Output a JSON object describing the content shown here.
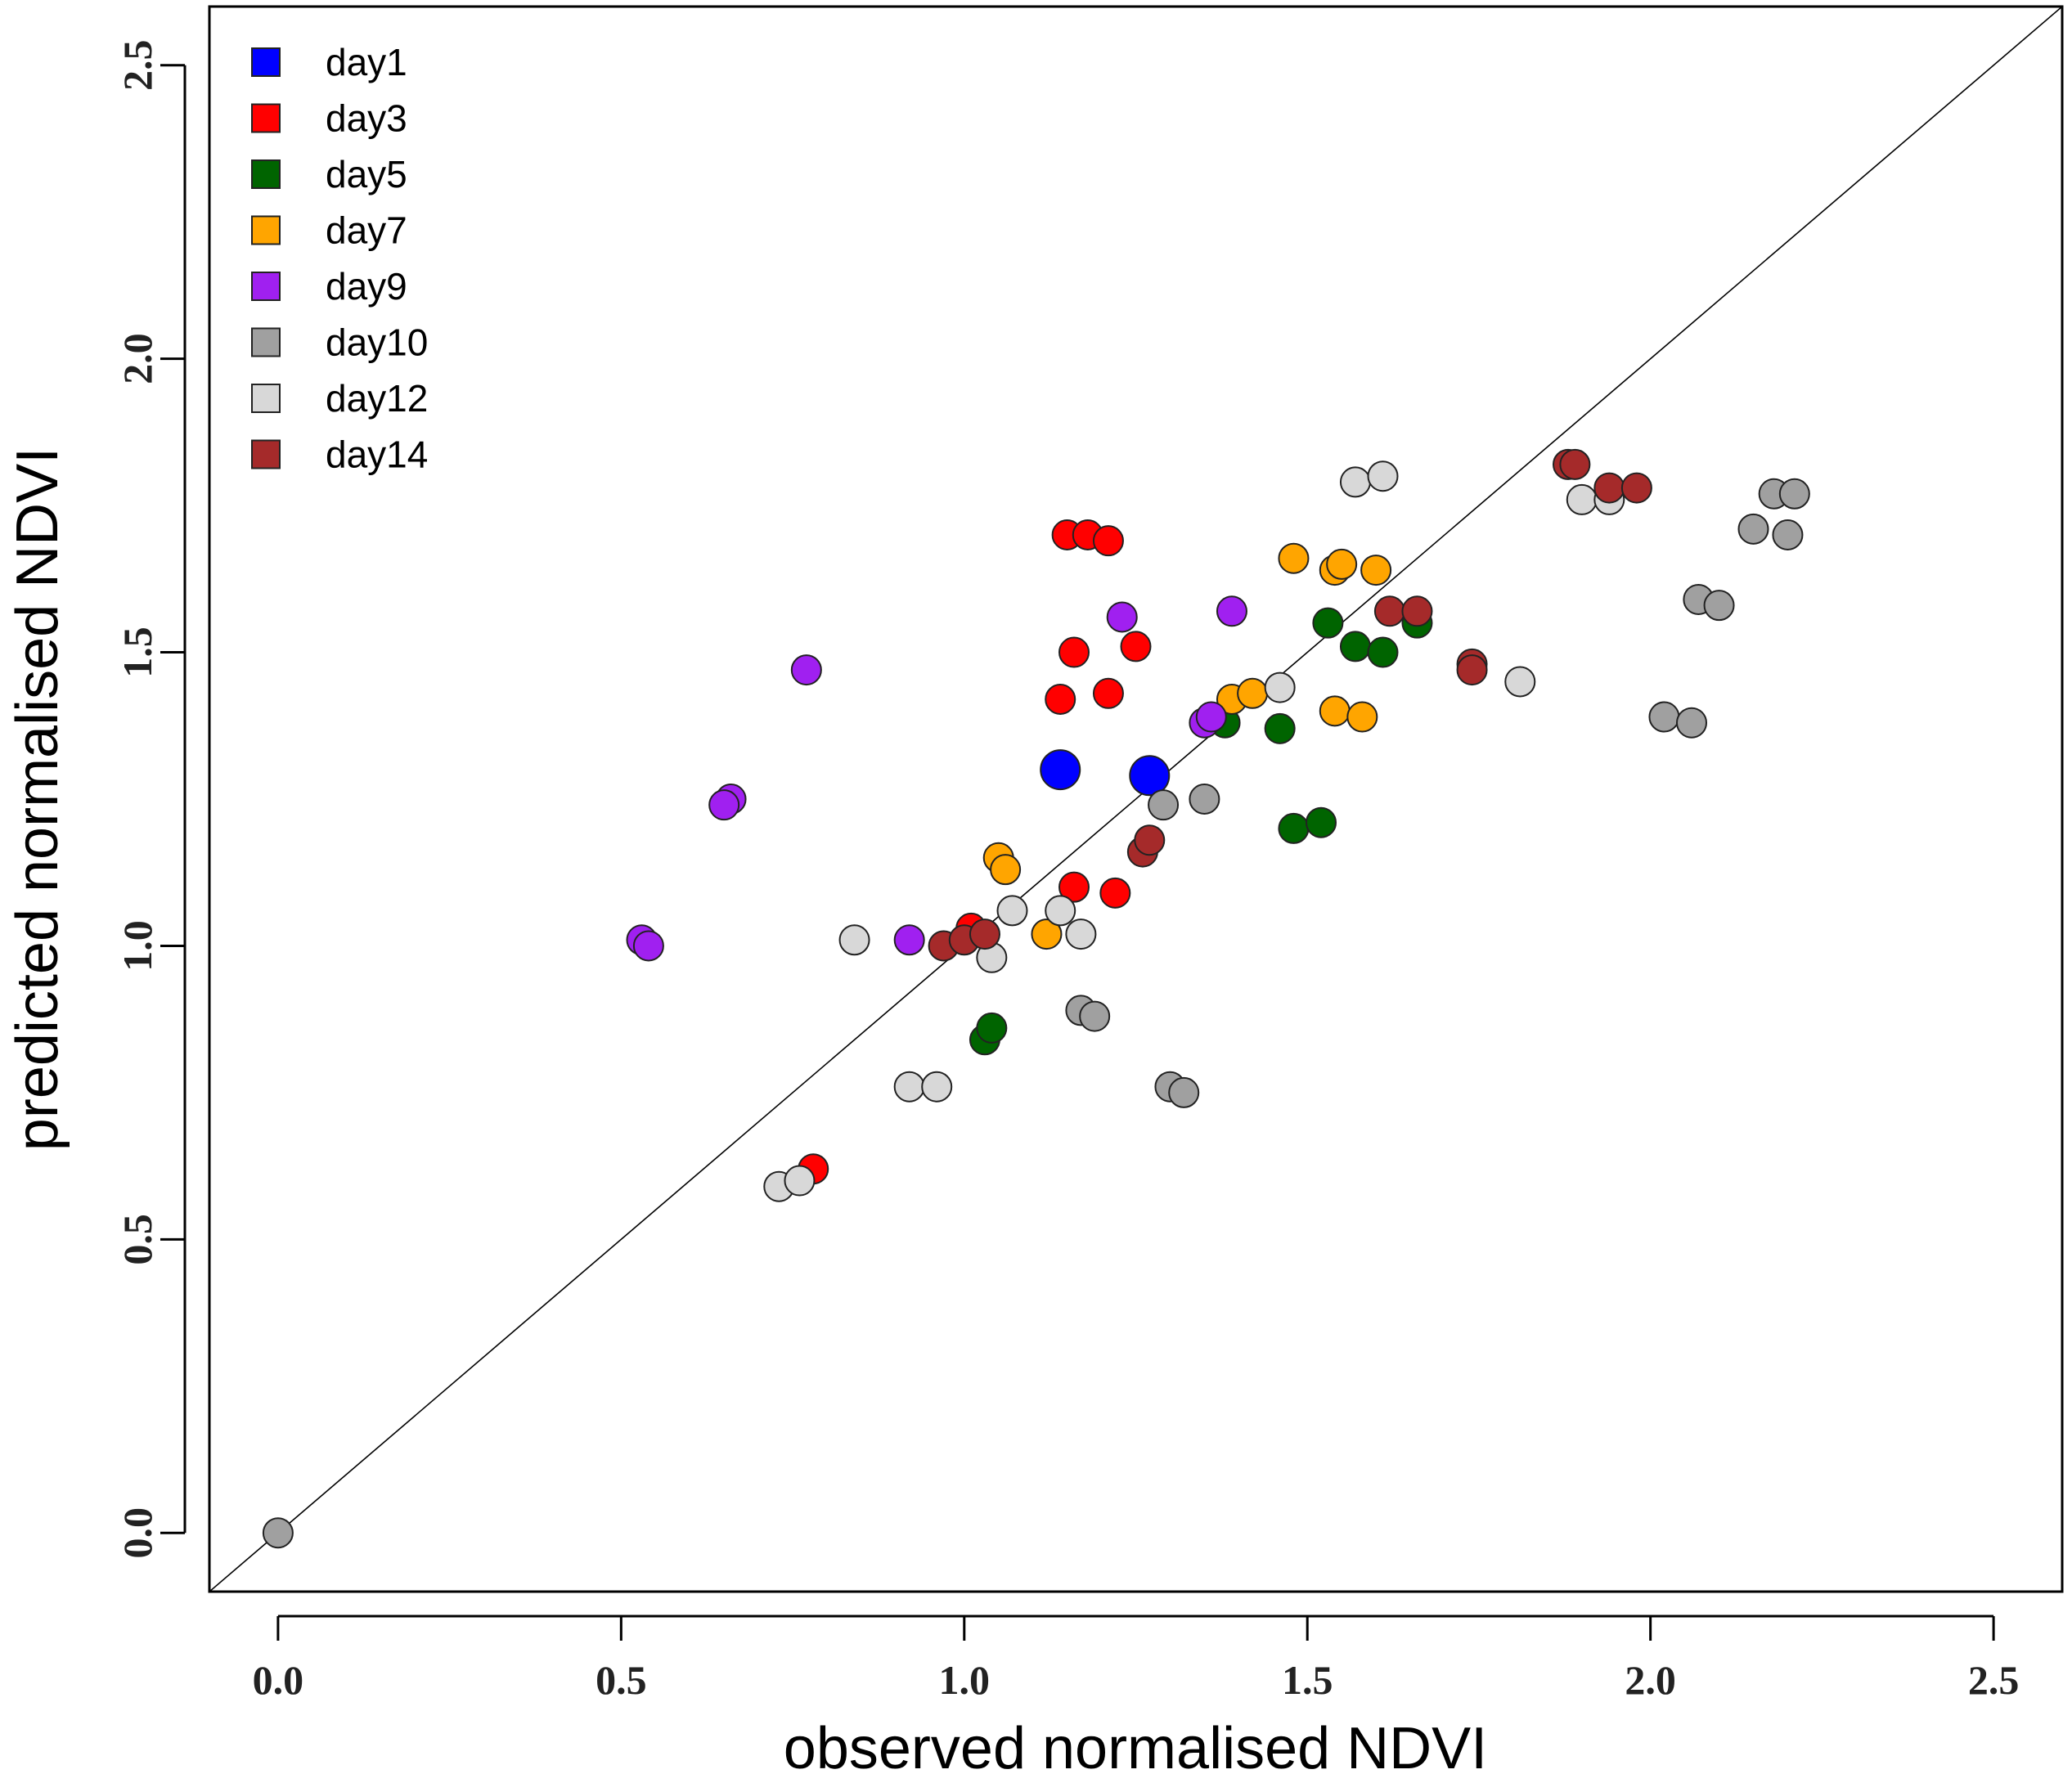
{
  "chart_data": {
    "type": "scatter",
    "title": "",
    "xlabel": "observed normalised NDVI",
    "ylabel": "predicted normalised NDVI",
    "xlim": [
      -0.1,
      2.6
    ],
    "ylim": [
      -0.1,
      2.6
    ],
    "xticks": [
      0.0,
      0.5,
      1.0,
      1.5,
      2.0,
      2.5
    ],
    "yticks": [
      0.0,
      0.5,
      1.0,
      1.5,
      2.0,
      2.5
    ],
    "xtick_labels": [
      "0.0",
      "0.5",
      "1.0",
      "1.5",
      "2.0",
      "2.5"
    ],
    "ytick_labels": [
      "0.0",
      "0.5",
      "1.0",
      "1.5",
      "2.0",
      "2.5"
    ],
    "reference_line": "y = x",
    "legend_position": "top-left",
    "series": [
      {
        "name": "day1",
        "color": "#0000ff",
        "points": [
          [
            1.14,
            1.3
          ],
          [
            1.27,
            1.29
          ]
        ]
      },
      {
        "name": "day3",
        "color": "#ff0000",
        "points": [
          [
            1.15,
            1.7
          ],
          [
            1.18,
            1.7
          ],
          [
            1.21,
            1.69
          ],
          [
            1.16,
            1.5
          ],
          [
            1.25,
            1.51
          ],
          [
            1.14,
            1.42
          ],
          [
            1.21,
            1.43
          ],
          [
            1.16,
            1.1
          ],
          [
            1.22,
            1.09
          ],
          [
            1.01,
            1.03
          ],
          [
            0.78,
            0.62
          ]
        ]
      },
      {
        "name": "day5",
        "color": "#006400",
        "points": [
          [
            1.53,
            1.55
          ],
          [
            1.57,
            1.51
          ],
          [
            1.61,
            1.5
          ],
          [
            1.66,
            1.55
          ],
          [
            1.38,
            1.38
          ],
          [
            1.46,
            1.37
          ],
          [
            1.48,
            1.2
          ],
          [
            1.52,
            1.21
          ],
          [
            1.03,
            0.84
          ],
          [
            1.04,
            0.86
          ]
        ]
      },
      {
        "name": "day7",
        "color": "#ffa500",
        "points": [
          [
            1.48,
            1.66
          ],
          [
            1.54,
            1.64
          ],
          [
            1.55,
            1.65
          ],
          [
            1.6,
            1.64
          ],
          [
            1.39,
            1.42
          ],
          [
            1.42,
            1.43
          ],
          [
            1.54,
            1.4
          ],
          [
            1.58,
            1.39
          ],
          [
            1.05,
            1.15
          ],
          [
            1.06,
            1.13
          ],
          [
            1.12,
            1.02
          ]
        ]
      },
      {
        "name": "day9",
        "color": "#a020f0",
        "points": [
          [
            0.77,
            1.47
          ],
          [
            1.23,
            1.56
          ],
          [
            1.39,
            1.57
          ],
          [
            1.35,
            1.38
          ],
          [
            1.36,
            1.39
          ],
          [
            0.66,
            1.25
          ],
          [
            0.65,
            1.24
          ],
          [
            0.53,
            1.01
          ],
          [
            0.54,
            1.0
          ],
          [
            0.92,
            1.01
          ]
        ]
      },
      {
        "name": "day10",
        "color": "#a0a0a0",
        "points": [
          [
            0.0,
            0.0
          ],
          [
            1.29,
            1.24
          ],
          [
            1.35,
            1.25
          ],
          [
            1.17,
            0.89
          ],
          [
            1.19,
            0.88
          ],
          [
            1.3,
            0.76
          ],
          [
            1.32,
            0.75
          ],
          [
            2.07,
            1.59
          ],
          [
            2.1,
            1.58
          ],
          [
            2.02,
            1.39
          ],
          [
            2.06,
            1.38
          ],
          [
            2.15,
            1.71
          ],
          [
            2.18,
            1.77
          ],
          [
            2.2,
            1.7
          ],
          [
            2.21,
            1.77
          ]
        ]
      },
      {
        "name": "day12",
        "color": "#d8d8d8",
        "points": [
          [
            1.57,
            1.79
          ],
          [
            1.61,
            1.8
          ],
          [
            1.9,
            1.76
          ],
          [
            1.94,
            1.76
          ],
          [
            1.46,
            1.44
          ],
          [
            1.81,
            1.45
          ],
          [
            1.07,
            1.06
          ],
          [
            1.14,
            1.06
          ],
          [
            1.17,
            1.02
          ],
          [
            0.84,
            1.01
          ],
          [
            1.04,
            0.98
          ],
          [
            0.92,
            0.76
          ],
          [
            0.96,
            0.76
          ],
          [
            0.73,
            0.59
          ],
          [
            0.76,
            0.6
          ]
        ]
      },
      {
        "name": "day14",
        "color": "#a52a2a",
        "points": [
          [
            1.88,
            1.82
          ],
          [
            1.89,
            1.82
          ],
          [
            1.94,
            1.78
          ],
          [
            1.98,
            1.78
          ],
          [
            1.62,
            1.57
          ],
          [
            1.66,
            1.57
          ],
          [
            1.74,
            1.48
          ],
          [
            1.74,
            1.47
          ],
          [
            1.26,
            1.16
          ],
          [
            1.27,
            1.18
          ],
          [
            0.97,
            1.0
          ],
          [
            1.0,
            1.01
          ],
          [
            1.03,
            1.02
          ]
        ]
      }
    ]
  }
}
